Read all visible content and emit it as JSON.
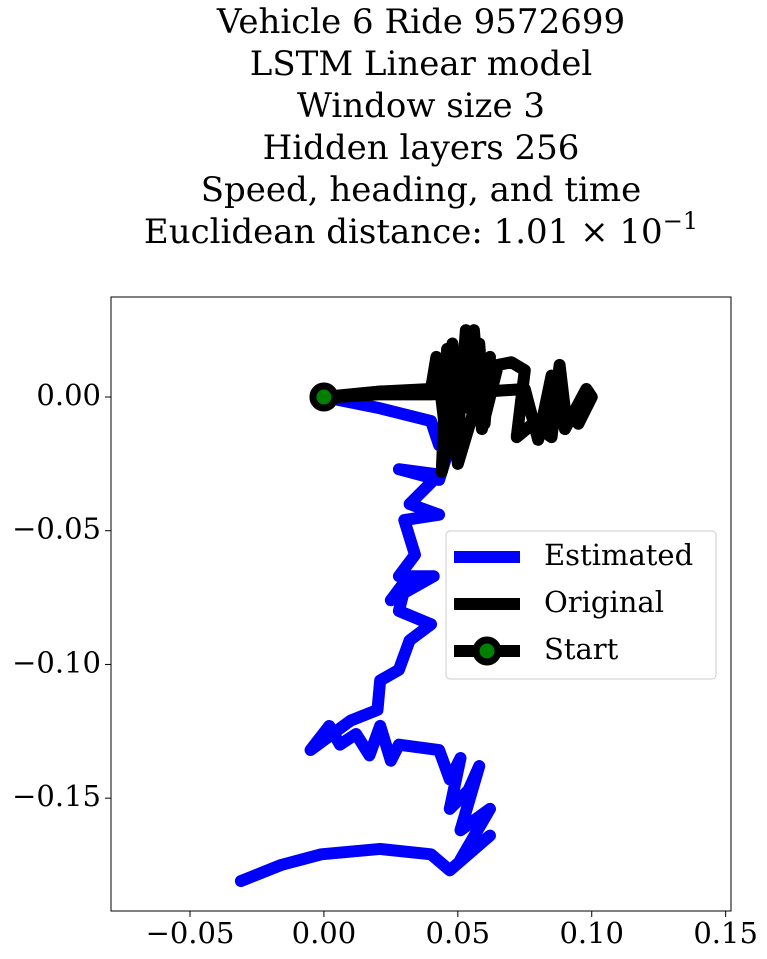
{
  "chart_data": {
    "type": "line",
    "title": [
      "Vehicle 6 Ride 9572699",
      "LSTM Linear model",
      "Window size 3",
      "Hidden layers 256",
      "Speed, heading, and time"
    ],
    "metric": {
      "text": "Euclidean distance: 1.01 × 10",
      "exponent": "−1"
    },
    "xlim": [
      -0.0795,
      0.152
    ],
    "ylim": [
      -0.1922,
      0.0374
    ],
    "xticks": [
      {
        "value": -0.05,
        "label": "−0.05"
      },
      {
        "value": 0,
        "label": "0.00"
      },
      {
        "value": 0.05,
        "label": "0.05"
      },
      {
        "value": 0.1,
        "label": "0.10"
      },
      {
        "value": 0.15,
        "label": "0.15"
      }
    ],
    "yticks": [
      {
        "value": 0,
        "label": "0.00"
      },
      {
        "value": -0.05,
        "label": "−0.05"
      },
      {
        "value": -0.1,
        "label": "−0.10"
      },
      {
        "value": -0.15,
        "label": "−0.15"
      }
    ],
    "legend": "right",
    "series": [
      {
        "name": "Estimated",
        "color": "#0000ff",
        "x": [
          0,
          0.02,
          0.04,
          0.043,
          0.049,
          0.043,
          0.028,
          0.043,
          0.032,
          0.043,
          0.03,
          0.034,
          0.028,
          0.041,
          0.025,
          0.031,
          0.028,
          0.04,
          0.032,
          0.028,
          0.021,
          0.02,
          0.01,
          -0.005,
          0.002,
          0.006,
          0.012,
          0.017,
          0.021,
          0.025,
          0.028,
          0.043,
          0.047,
          0.051,
          0.047,
          0.054,
          0.058,
          0.051,
          0.062,
          0.051,
          0.062,
          0.047,
          0.04,
          0.021,
          -0.001,
          -0.016,
          -0.031
        ],
        "y": [
          0,
          -0.004,
          -0.009,
          -0.018,
          -0.012,
          -0.031,
          -0.027,
          -0.029,
          -0.04,
          -0.044,
          -0.046,
          -0.059,
          -0.067,
          -0.067,
          -0.076,
          -0.068,
          -0.08,
          -0.085,
          -0.091,
          -0.102,
          -0.106,
          -0.117,
          -0.121,
          -0.132,
          -0.123,
          -0.13,
          -0.126,
          -0.134,
          -0.123,
          -0.136,
          -0.13,
          -0.132,
          -0.143,
          -0.135,
          -0.154,
          -0.147,
          -0.138,
          -0.162,
          -0.154,
          -0.173,
          -0.164,
          -0.177,
          -0.171,
          -0.169,
          -0.171,
          -0.175,
          -0.181
        ]
      },
      {
        "name": "Original",
        "color": "#000000",
        "x": [
          0,
          0.02,
          0.04,
          0.042,
          0.045,
          0.048,
          0.05,
          0.053,
          0.055,
          0.058,
          0.06,
          0.062,
          0.05,
          0.046,
          0.044,
          0.052,
          0.056,
          0.059,
          0.065,
          0.07,
          0.075,
          0.072,
          0.078,
          0.085,
          0.088,
          0.09,
          0.095,
          0.1,
          0.098,
          0.09,
          0.085,
          0.08,
          0.075,
          0.06,
          0.04,
          0.02,
          0.005
        ],
        "y": [
          0,
          0.002,
          0.003,
          0.015,
          -0.01,
          0.02,
          -0.015,
          0.025,
          -0.005,
          0.02,
          -0.01,
          0.015,
          -0.025,
          0.018,
          -0.028,
          0.01,
          0.025,
          -0.012,
          0.012,
          0.013,
          0.01,
          -0.015,
          -0.01,
          -0.015,
          0.012,
          -0.005,
          -0.01,
          0,
          0.003,
          -0.012,
          0.008,
          -0.016,
          0.003,
          0.002,
          0.001,
          0.001,
          0
        ]
      }
    ],
    "start": {
      "name": "Start",
      "x": 0,
      "y": 0,
      "color": "#008000",
      "edgecolor": "#000000"
    }
  }
}
